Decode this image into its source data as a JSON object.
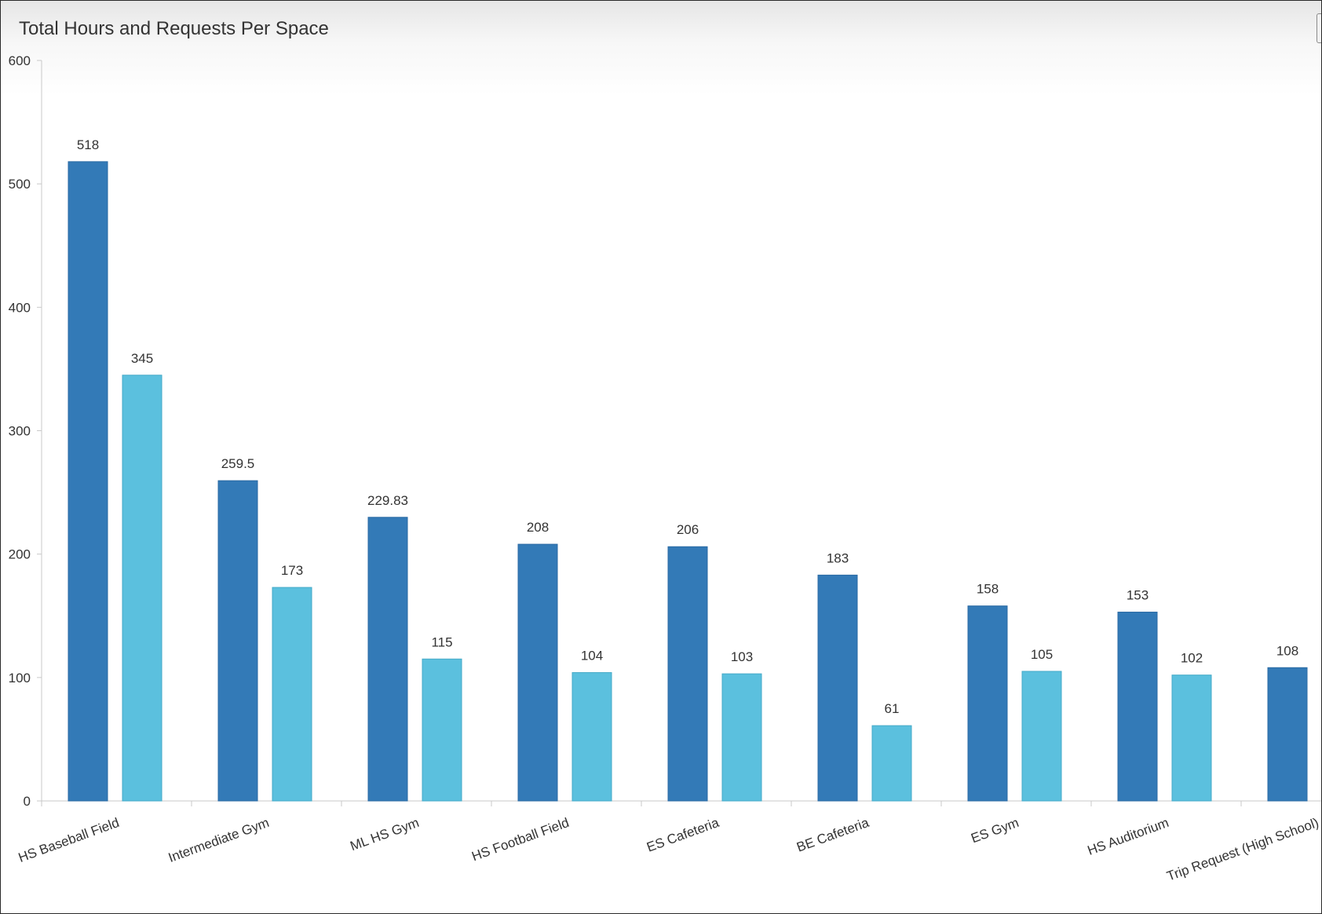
{
  "chart_data": {
    "type": "bar",
    "title": "Total Hours and Requests Per Space",
    "xlabel": "",
    "ylabel": "",
    "ylim": [
      0,
      600
    ],
    "yticks": [
      0,
      100,
      200,
      300,
      400,
      500,
      600
    ],
    "grid": false,
    "categories": [
      "HS Baseball Field",
      "Intermediate Gym",
      "ML HS Gym",
      "HS Football Field",
      "ES Cafeteria",
      "BE Cafeteria",
      "ES Gym",
      "HS Auditorium",
      "Trip Request (High School)"
    ],
    "series": [
      {
        "color": "#337ab7",
        "values": [
          518,
          259.5,
          229.83,
          208,
          206,
          183,
          158,
          153,
          108
        ],
        "labels": [
          "518",
          "259.5",
          "229.83",
          "208",
          "206",
          "183",
          "158",
          "153",
          "108"
        ]
      },
      {
        "color": "#5bc0de",
        "values": [
          345,
          173,
          115,
          104,
          103,
          61,
          105,
          102,
          null
        ],
        "labels": [
          "345",
          "173",
          "115",
          "104",
          "103",
          "61",
          "105",
          "102",
          ""
        ]
      }
    ]
  }
}
